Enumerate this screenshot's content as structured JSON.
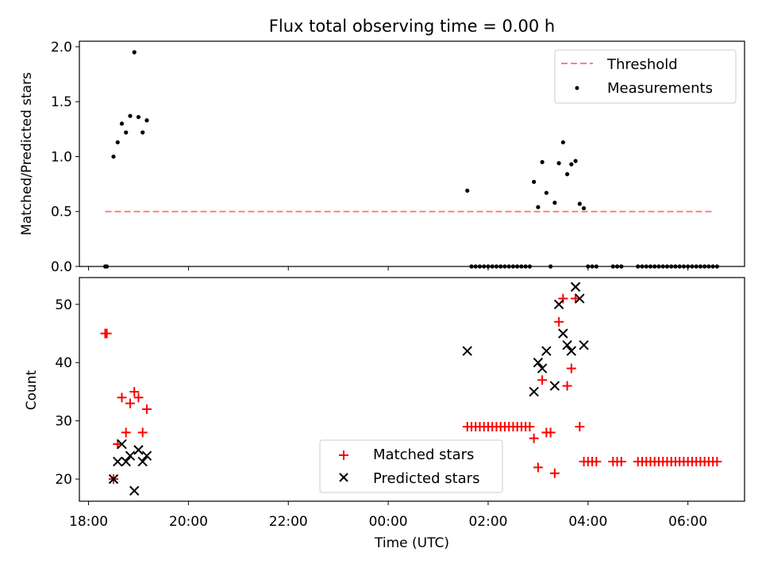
{
  "chart_data": [
    {
      "type": "scatter",
      "title": "Flux total observing time = 0.00 h",
      "xlabel": "",
      "ylabel": "Matched/Predicted stars",
      "xlim": [
        "17:49",
        "07:08"
      ],
      "ylim": [
        0,
        2.05
      ],
      "x_ticks": [
        "18:00",
        "20:00",
        "22:00",
        "00:00",
        "02:00",
        "04:00",
        "06:00"
      ],
      "y_ticks": [
        "0.0",
        "0.5",
        "1.0",
        "1.5",
        "2.0"
      ],
      "legend_position": "top-right",
      "threshold": {
        "name": "Threshold",
        "x_range": [
          "18:20",
          "06:30"
        ],
        "value": 0.5,
        "color": "#ff7f7f",
        "style": "dashed"
      },
      "series": [
        {
          "name": "Measurements",
          "color": "#000000",
          "marker": "dot",
          "points": [
            [
              "18:20",
              0.0
            ],
            [
              "18:22",
              0.0
            ],
            [
              "18:30",
              1.0
            ],
            [
              "18:35",
              1.13
            ],
            [
              "18:40",
              1.3
            ],
            [
              "18:45",
              1.22
            ],
            [
              "18:50",
              1.37
            ],
            [
              "18:55",
              1.95
            ],
            [
              "19:00",
              1.36
            ],
            [
              "19:05",
              1.22
            ],
            [
              "19:10",
              1.33
            ],
            [
              "01:35",
              0.69
            ],
            [
              "01:40",
              0.0
            ],
            [
              "01:45",
              0.0
            ],
            [
              "01:50",
              0.0
            ],
            [
              "01:55",
              0.0
            ],
            [
              "02:00",
              0.0
            ],
            [
              "02:05",
              0.0
            ],
            [
              "02:10",
              0.0
            ],
            [
              "02:15",
              0.0
            ],
            [
              "02:20",
              0.0
            ],
            [
              "02:25",
              0.0
            ],
            [
              "02:30",
              0.0
            ],
            [
              "02:35",
              0.0
            ],
            [
              "02:40",
              0.0
            ],
            [
              "02:45",
              0.0
            ],
            [
              "02:50",
              0.0
            ],
            [
              "02:55",
              0.77
            ],
            [
              "03:00",
              0.54
            ],
            [
              "03:05",
              0.95
            ],
            [
              "03:10",
              0.67
            ],
            [
              "03:15",
              0.0
            ],
            [
              "03:20",
              0.58
            ],
            [
              "03:25",
              0.94
            ],
            [
              "03:30",
              1.13
            ],
            [
              "03:35",
              0.84
            ],
            [
              "03:40",
              0.93
            ],
            [
              "03:45",
              0.96
            ],
            [
              "03:50",
              0.57
            ],
            [
              "03:55",
              0.53
            ],
            [
              "04:00",
              0.0
            ],
            [
              "04:05",
              0.0
            ],
            [
              "04:10",
              0.0
            ],
            [
              "04:30",
              0.0
            ],
            [
              "04:35",
              0.0
            ],
            [
              "04:40",
              0.0
            ],
            [
              "05:00",
              0.0
            ],
            [
              "05:05",
              0.0
            ],
            [
              "05:10",
              0.0
            ],
            [
              "05:15",
              0.0
            ],
            [
              "05:20",
              0.0
            ],
            [
              "05:25",
              0.0
            ],
            [
              "05:30",
              0.0
            ],
            [
              "05:35",
              0.0
            ],
            [
              "05:40",
              0.0
            ],
            [
              "05:45",
              0.0
            ],
            [
              "05:50",
              0.0
            ],
            [
              "05:55",
              0.0
            ],
            [
              "06:00",
              0.0
            ],
            [
              "06:05",
              0.0
            ],
            [
              "06:10",
              0.0
            ],
            [
              "06:15",
              0.0
            ],
            [
              "06:20",
              0.0
            ],
            [
              "06:25",
              0.0
            ],
            [
              "06:30",
              0.0
            ],
            [
              "06:35",
              0.0
            ]
          ]
        }
      ]
    },
    {
      "type": "scatter",
      "title": "",
      "xlabel": "Time (UTC)",
      "ylabel": "Count",
      "xlim": [
        "17:49",
        "07:08"
      ],
      "ylim": [
        16.2,
        54.6
      ],
      "x_ticks": [
        "18:00",
        "20:00",
        "22:00",
        "00:00",
        "02:00",
        "04:00",
        "06:00"
      ],
      "y_ticks": [
        "20",
        "30",
        "40",
        "50"
      ],
      "legend_position": "lower-center",
      "series": [
        {
          "name": "Matched stars",
          "color": "#ff0000",
          "marker": "plus",
          "points": [
            [
              "18:20",
              45
            ],
            [
              "18:22",
              45
            ],
            [
              "18:30",
              20
            ],
            [
              "18:35",
              26
            ],
            [
              "18:40",
              34
            ],
            [
              "18:45",
              28
            ],
            [
              "18:50",
              33
            ],
            [
              "18:55",
              35
            ],
            [
              "19:00",
              34
            ],
            [
              "19:05",
              28
            ],
            [
              "19:10",
              32
            ],
            [
              "01:35",
              29
            ],
            [
              "01:40",
              29
            ],
            [
              "01:45",
              29
            ],
            [
              "01:50",
              29
            ],
            [
              "01:55",
              29
            ],
            [
              "02:00",
              29
            ],
            [
              "02:05",
              29
            ],
            [
              "02:10",
              29
            ],
            [
              "02:15",
              29
            ],
            [
              "02:20",
              29
            ],
            [
              "02:25",
              29
            ],
            [
              "02:30",
              29
            ],
            [
              "02:35",
              29
            ],
            [
              "02:40",
              29
            ],
            [
              "02:45",
              29
            ],
            [
              "02:50",
              29
            ],
            [
              "02:55",
              27
            ],
            [
              "03:00",
              22
            ],
            [
              "03:05",
              37
            ],
            [
              "03:10",
              28
            ],
            [
              "03:15",
              28
            ],
            [
              "03:20",
              21
            ],
            [
              "03:25",
              47
            ],
            [
              "03:30",
              51
            ],
            [
              "03:35",
              36
            ],
            [
              "03:40",
              39
            ],
            [
              "03:45",
              51
            ],
            [
              "03:50",
              29
            ],
            [
              "03:55",
              23
            ],
            [
              "04:00",
              23
            ],
            [
              "04:05",
              23
            ],
            [
              "04:10",
              23
            ],
            [
              "04:30",
              23
            ],
            [
              "04:35",
              23
            ],
            [
              "04:40",
              23
            ],
            [
              "05:00",
              23
            ],
            [
              "05:05",
              23
            ],
            [
              "05:10",
              23
            ],
            [
              "05:15",
              23
            ],
            [
              "05:20",
              23
            ],
            [
              "05:25",
              23
            ],
            [
              "05:30",
              23
            ],
            [
              "05:35",
              23
            ],
            [
              "05:40",
              23
            ],
            [
              "05:45",
              23
            ],
            [
              "05:50",
              23
            ],
            [
              "05:55",
              23
            ],
            [
              "06:00",
              23
            ],
            [
              "06:05",
              23
            ],
            [
              "06:10",
              23
            ],
            [
              "06:15",
              23
            ],
            [
              "06:20",
              23
            ],
            [
              "06:25",
              23
            ],
            [
              "06:30",
              23
            ],
            [
              "06:35",
              23
            ]
          ]
        },
        {
          "name": "Predicted stars",
          "color": "#000000",
          "marker": "x",
          "points": [
            [
              "18:30",
              20
            ],
            [
              "18:35",
              23
            ],
            [
              "18:40",
              26
            ],
            [
              "18:45",
              23
            ],
            [
              "18:50",
              24
            ],
            [
              "18:55",
              18
            ],
            [
              "19:00",
              25
            ],
            [
              "19:05",
              23
            ],
            [
              "19:10",
              24
            ],
            [
              "01:35",
              42
            ],
            [
              "02:55",
              35
            ],
            [
              "03:00",
              40
            ],
            [
              "03:05",
              39
            ],
            [
              "03:10",
              42
            ],
            [
              "03:20",
              36
            ],
            [
              "03:25",
              50
            ],
            [
              "03:30",
              45
            ],
            [
              "03:35",
              43
            ],
            [
              "03:40",
              42
            ],
            [
              "03:45",
              53
            ],
            [
              "03:50",
              51
            ],
            [
              "03:55",
              43
            ]
          ]
        }
      ]
    }
  ]
}
